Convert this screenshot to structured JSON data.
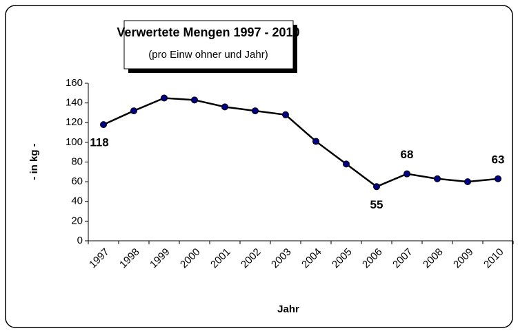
{
  "chart_data": {
    "type": "line",
    "title": "Verwertete Mengen 1997 - 2010",
    "subtitle": "(pro Einw ohner und Jahr)",
    "x_label": "Jahr",
    "y_label": "- in kg -",
    "categories": [
      "1997",
      "1998",
      "1999",
      "2000",
      "2001",
      "2002",
      "2003",
      "2004",
      "2005",
      "2006",
      "2007",
      "2008",
      "2009",
      "2010"
    ],
    "series": [
      {
        "name": "Verwertete Mengen",
        "color": "#000080",
        "values": [
          118,
          132,
          145,
          143,
          136,
          132,
          128,
          101,
          78,
          55,
          68,
          63,
          60,
          63
        ],
        "value_labels": [
          "118",
          null,
          null,
          null,
          null,
          null,
          null,
          null,
          null,
          "55",
          "68",
          null,
          null,
          "63"
        ]
      }
    ],
    "ylim": [
      0,
      160
    ],
    "yticks": [
      0,
      20,
      40,
      60,
      80,
      100,
      120,
      140,
      160
    ],
    "grid": false
  }
}
